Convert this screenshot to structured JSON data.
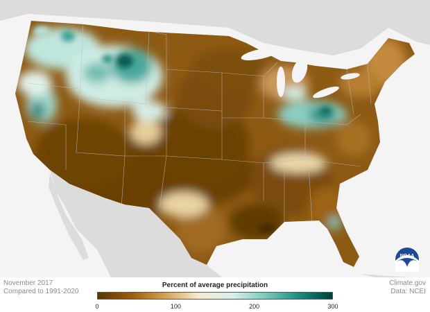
{
  "map": {
    "colors": {
      "ocean": "#f4f4f4",
      "land": "#d9d9d9",
      "border": "#ffffff"
    }
  },
  "footer": {
    "left_line1": "November 2017",
    "left_line2": "Compared to 1991-2020",
    "right_line1": "Climate.gov",
    "right_line2": "Data: NCEI"
  },
  "legend": {
    "title": "Percent of average precipitation",
    "ticks": [
      "0",
      "100",
      "200",
      "300"
    ],
    "tick_values": [
      0,
      100,
      200,
      300
    ],
    "range": [
      0,
      300
    ],
    "colors": [
      "#5a3600",
      "#9b5c10",
      "#d2a253",
      "#f6ead0",
      "#d9f1ec",
      "#7cc9bb",
      "#1f8a80",
      "#003f3a"
    ]
  },
  "logo": {
    "text": "NOAA"
  }
}
